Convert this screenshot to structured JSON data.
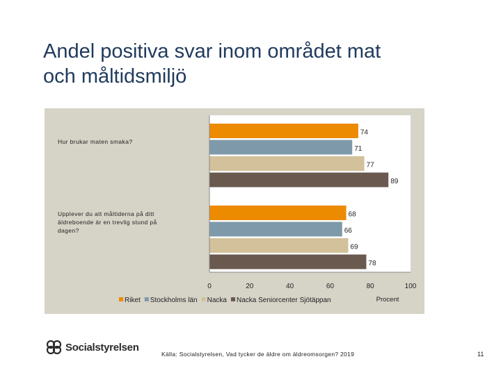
{
  "slide": {
    "title_line1": "Andel positiva svar inom området mat",
    "title_line2": "och måltidsmiljö",
    "source": "Källa: Socialstyrelsen, Vad tycker de äldre om äldreomsorgen? 2019",
    "page_number": "11",
    "logo_text": "Socialstyrelsen"
  },
  "chart_data": {
    "type": "bar",
    "orientation": "horizontal",
    "categories": [
      "Hur brukar maten smaka?",
      "Upplever du att måltiderna på ditt äldreboende är en trevlig stund på dagen?"
    ],
    "series": [
      {
        "name": "Riket",
        "values": [
          74,
          68
        ],
        "color": "#ec8a00"
      },
      {
        "name": "Stockholms län",
        "values": [
          71,
          66
        ],
        "color": "#7e9aaa"
      },
      {
        "name": "Nacka",
        "values": [
          77,
          69
        ],
        "color": "#d2c19a"
      },
      {
        "name": "Nacka Seniorcenter Sjötäppan",
        "values": [
          89,
          78
        ],
        "color": "#6a594f"
      }
    ],
    "xlim": [
      0,
      100
    ],
    "xticks": [
      "0",
      "20",
      "40",
      "60",
      "80",
      "100"
    ],
    "xlabel": "Procent",
    "legend_position": "bottom-left",
    "plot_background": "#ffffff",
    "panel_background": "#d6d3c7"
  }
}
